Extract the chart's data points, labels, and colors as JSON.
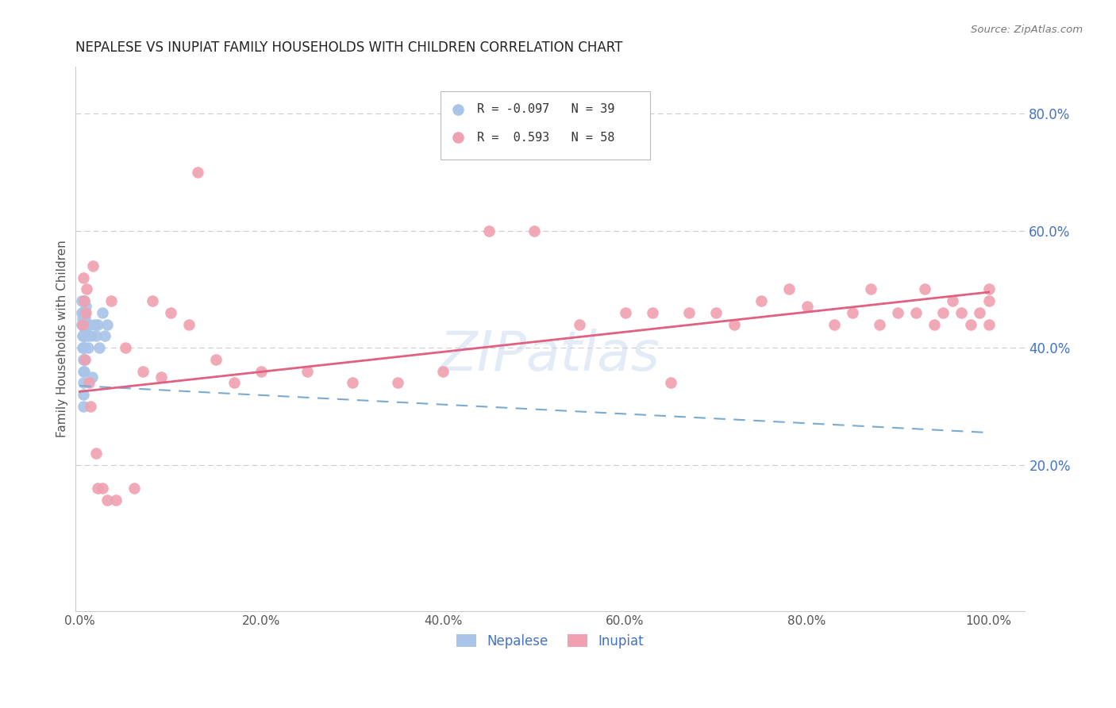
{
  "title": "NEPALESE VS INUPIAT FAMILY HOUSEHOLDS WITH CHILDREN CORRELATION CHART",
  "source": "Source: ZipAtlas.com",
  "ylabel": "Family Households with Children",
  "watermark": "ZIPatlas",
  "x_tick_labels": [
    "0.0%",
    "20.0%",
    "40.0%",
    "60.0%",
    "80.0%",
    "100.0%"
  ],
  "x_tick_vals": [
    0.0,
    0.2,
    0.4,
    0.6,
    0.8,
    1.0
  ],
  "y_tick_labels": [
    "20.0%",
    "40.0%",
    "60.0%",
    "80.0%"
  ],
  "y_tick_vals": [
    0.2,
    0.4,
    0.6,
    0.8
  ],
  "nepalese_color": "#a8c4e8",
  "inupiat_color": "#f0a0b0",
  "nepalese_line_color": "#7aaad0",
  "inupiat_line_color": "#e06080",
  "grid_color": "#cccccc",
  "background_color": "#ffffff",
  "nepalese_x": [
    0.002,
    0.002,
    0.002,
    0.003,
    0.003,
    0.003,
    0.003,
    0.003,
    0.004,
    0.004,
    0.004,
    0.004,
    0.004,
    0.004,
    0.004,
    0.004,
    0.004,
    0.005,
    0.005,
    0.005,
    0.005,
    0.005,
    0.005,
    0.005,
    0.006,
    0.006,
    0.007,
    0.008,
    0.009,
    0.01,
    0.012,
    0.014,
    0.016,
    0.018,
    0.02,
    0.022,
    0.025,
    0.028,
    0.03
  ],
  "nepalese_y": [
    0.44,
    0.46,
    0.48,
    0.4,
    0.42,
    0.44,
    0.45,
    0.46,
    0.3,
    0.32,
    0.34,
    0.36,
    0.38,
    0.4,
    0.42,
    0.44,
    0.46,
    0.36,
    0.38,
    0.4,
    0.42,
    0.44,
    0.46,
    0.48,
    0.43,
    0.45,
    0.47,
    0.42,
    0.4,
    0.44,
    0.42,
    0.35,
    0.44,
    0.42,
    0.44,
    0.4,
    0.46,
    0.42,
    0.44
  ],
  "inupiat_x": [
    0.003,
    0.004,
    0.005,
    0.006,
    0.007,
    0.008,
    0.01,
    0.012,
    0.015,
    0.018,
    0.02,
    0.025,
    0.03,
    0.035,
    0.04,
    0.05,
    0.06,
    0.07,
    0.08,
    0.09,
    0.1,
    0.12,
    0.13,
    0.15,
    0.17,
    0.2,
    0.25,
    0.3,
    0.35,
    0.4,
    0.45,
    0.5,
    0.55,
    0.6,
    0.63,
    0.65,
    0.67,
    0.7,
    0.72,
    0.75,
    0.78,
    0.8,
    0.83,
    0.85,
    0.87,
    0.88,
    0.9,
    0.92,
    0.93,
    0.94,
    0.95,
    0.96,
    0.97,
    0.98,
    0.99,
    1.0,
    1.0,
    1.0
  ],
  "inupiat_y": [
    0.44,
    0.52,
    0.48,
    0.38,
    0.46,
    0.5,
    0.34,
    0.3,
    0.54,
    0.22,
    0.16,
    0.16,
    0.14,
    0.48,
    0.14,
    0.4,
    0.16,
    0.36,
    0.48,
    0.35,
    0.46,
    0.44,
    0.7,
    0.38,
    0.34,
    0.36,
    0.36,
    0.34,
    0.34,
    0.36,
    0.6,
    0.6,
    0.44,
    0.46,
    0.46,
    0.34,
    0.46,
    0.46,
    0.44,
    0.48,
    0.5,
    0.47,
    0.44,
    0.46,
    0.5,
    0.44,
    0.46,
    0.46,
    0.5,
    0.44,
    0.46,
    0.48,
    0.46,
    0.44,
    0.46,
    0.5,
    0.48,
    0.44
  ],
  "ylim_low": -0.05,
  "ylim_high": 0.88,
  "xlim_low": -0.005,
  "xlim_high": 1.04
}
